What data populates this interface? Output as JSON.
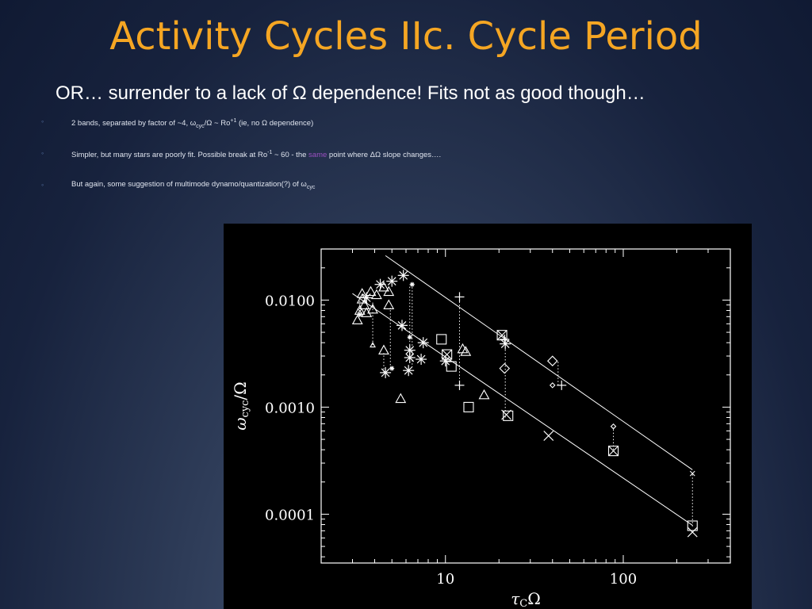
{
  "slide": {
    "title": "Activity Cycles IIc. Cycle Period",
    "subtitle": "OR… surrender to a lack of Ω dependence! Fits not as good though…",
    "bullets": [
      {
        "marker": "◦",
        "parts": [
          "2  bands, separated by factor of ~4, ω",
          "cyc",
          "/Ω ~ Ro",
          "+1",
          " (ie, no Ω dependence)"
        ]
      },
      {
        "marker": "◦",
        "parts": [
          "Simpler, but many stars are poorly fit.  Possible break at Ro",
          "-1",
          " ~ 60 - the ",
          "same",
          " point where ΔΩ slope changes…."
        ]
      },
      {
        "marker": "◦",
        "parts": [
          "But again, some suggestion of multimode dynamo/quantization(?) of ω",
          "cyc"
        ]
      }
    ]
  },
  "chart_data": {
    "type": "scatter",
    "xlabel": "τCΩ",
    "ylabel": "ωcyc/Ω",
    "xscale": "log",
    "yscale": "log",
    "xlim": [
      2.0,
      400
    ],
    "ylim": [
      3.5e-05,
      0.03
    ],
    "xticks": [
      {
        "value": 10,
        "label": "10"
      },
      {
        "value": 100,
        "label": "100"
      }
    ],
    "yticks": [
      {
        "value": 0.0001,
        "label": "0.0001"
      },
      {
        "value": 0.001,
        "label": "0.0010"
      },
      {
        "value": 0.01,
        "label": "0.0100"
      }
    ],
    "fit_lines": [
      {
        "x": [
          4.6,
          245
        ],
        "y": [
          0.026,
          0.00026
        ]
      },
      {
        "x": [
          3.0,
          245
        ],
        "y": [
          0.0115,
          7.88e-05
        ]
      }
    ],
    "connectors": [
      {
        "x": 3.3,
        "y": [
          0.0073,
          0.0105
        ]
      },
      {
        "x": 3.9,
        "y": [
          0.0038,
          0.0095
        ]
      },
      {
        "x": 4.5,
        "y": [
          0.0021,
          0.0032
        ]
      },
      {
        "x": 4.9,
        "y": [
          0.0023,
          0.0085
        ]
      },
      {
        "x": 6.3,
        "y": [
          0.0031,
          0.014
        ]
      },
      {
        "x": 6.5,
        "y": [
          0.0025,
          0.0135
        ]
      },
      {
        "x": 12,
        "y": [
          0.0016,
          0.0107
        ]
      },
      {
        "x": 21.7,
        "y": [
          0.0008,
          0.0046
        ]
      },
      {
        "x": 43,
        "y": [
          0.0016,
          0.0027
        ]
      },
      {
        "x": 88,
        "y": [
          0.0004,
          0.00065
        ]
      },
      {
        "x": 245,
        "y": [
          7.7e-05,
          0.00024
        ]
      }
    ],
    "points": [
      {
        "x": 3.2,
        "y": 0.0065,
        "m": "triangle"
      },
      {
        "x": 3.3,
        "y": 0.008,
        "m": "triangle"
      },
      {
        "x": 3.4,
        "y": 0.0115,
        "m": "triangle"
      },
      {
        "x": 3.4,
        "y": 0.0102,
        "m": "triangle"
      },
      {
        "x": 3.5,
        "y": 0.009,
        "m": "triangle"
      },
      {
        "x": 3.6,
        "y": 0.0076,
        "m": "triangle"
      },
      {
        "x": 3.8,
        "y": 0.012,
        "m": "triangle"
      },
      {
        "x": 3.9,
        "y": 0.0082,
        "m": "triangle"
      },
      {
        "x": 4.1,
        "y": 0.0112,
        "m": "triangle"
      },
      {
        "x": 4.5,
        "y": 0.0132,
        "m": "triangle"
      },
      {
        "x": 4.8,
        "y": 0.012,
        "m": "triangle"
      },
      {
        "x": 4.8,
        "y": 0.009,
        "m": "triangle"
      },
      {
        "x": 4.5,
        "y": 0.0034,
        "m": "triangle"
      },
      {
        "x": 5.6,
        "y": 0.0012,
        "m": "triangle"
      },
      {
        "x": 12.5,
        "y": 0.0035,
        "m": "triangle"
      },
      {
        "x": 13.0,
        "y": 0.0033,
        "m": "triangle"
      },
      {
        "x": 16.5,
        "y": 0.0013,
        "m": "triangle"
      },
      {
        "x": 3.6,
        "y": 0.0105,
        "m": "star"
      },
      {
        "x": 4.3,
        "y": 0.014,
        "m": "star"
      },
      {
        "x": 5.0,
        "y": 0.015,
        "m": "star"
      },
      {
        "x": 5.8,
        "y": 0.017,
        "m": "star"
      },
      {
        "x": 5.7,
        "y": 0.0058,
        "m": "star"
      },
      {
        "x": 6.3,
        "y": 0.0034,
        "m": "star"
      },
      {
        "x": 6.3,
        "y": 0.0029,
        "m": "star"
      },
      {
        "x": 6.2,
        "y": 0.0022,
        "m": "star"
      },
      {
        "x": 7.3,
        "y": 0.0028,
        "m": "star"
      },
      {
        "x": 7.5,
        "y": 0.004,
        "m": "star"
      },
      {
        "x": 4.6,
        "y": 0.0021,
        "m": "star"
      },
      {
        "x": 10.0,
        "y": 0.0027,
        "m": "star"
      },
      {
        "x": 21.7,
        "y": 0.0039,
        "m": "star"
      },
      {
        "x": 6.3,
        "y": 0.0045,
        "m": "small-star"
      },
      {
        "x": 6.5,
        "y": 0.014,
        "m": "small-star"
      },
      {
        "x": 5.0,
        "y": 0.0023,
        "m": "small-star"
      },
      {
        "x": 3.3,
        "y": 0.0073,
        "m": "small-star"
      },
      {
        "x": 9.5,
        "y": 0.0043,
        "m": "square"
      },
      {
        "x": 10.2,
        "y": 0.0031,
        "m": "square"
      },
      {
        "x": 10.8,
        "y": 0.0024,
        "m": "square"
      },
      {
        "x": 13.5,
        "y": 0.001,
        "m": "square"
      },
      {
        "x": 20.8,
        "y": 0.0047,
        "m": "square"
      },
      {
        "x": 22.5,
        "y": 0.00083,
        "m": "square"
      },
      {
        "x": 88.0,
        "y": 0.00039,
        "m": "square"
      },
      {
        "x": 245.0,
        "y": 7.8e-05,
        "m": "square"
      },
      {
        "x": 10.2,
        "y": 0.0031,
        "m": "x"
      },
      {
        "x": 20.8,
        "y": 0.0047,
        "m": "x"
      },
      {
        "x": 22.0,
        "y": 0.00085,
        "m": "x"
      },
      {
        "x": 38.0,
        "y": 0.00054,
        "m": "x"
      },
      {
        "x": 88.0,
        "y": 0.00039,
        "m": "x"
      },
      {
        "x": 245.0,
        "y": 6.8e-05,
        "m": "x"
      },
      {
        "x": 3.3,
        "y": 0.0079,
        "m": "small-x"
      },
      {
        "x": 245.0,
        "y": 0.00024,
        "m": "small-x"
      },
      {
        "x": 12.0,
        "y": 0.0016,
        "m": "plus"
      },
      {
        "x": 12.0,
        "y": 0.0107,
        "m": "plus"
      },
      {
        "x": 21.5,
        "y": 0.0043,
        "m": "plus"
      },
      {
        "x": 45.0,
        "y": 0.0016,
        "m": "plus"
      },
      {
        "x": 21.5,
        "y": 0.0023,
        "m": "diamond"
      },
      {
        "x": 40.0,
        "y": 0.0027,
        "m": "diamond"
      },
      {
        "x": 88.0,
        "y": 0.00066,
        "m": "small-diamond"
      },
      {
        "x": 40.0,
        "y": 0.0016,
        "m": "small-diamond"
      },
      {
        "x": 3.9,
        "y": 0.0038,
        "m": "small-triangle"
      }
    ]
  }
}
